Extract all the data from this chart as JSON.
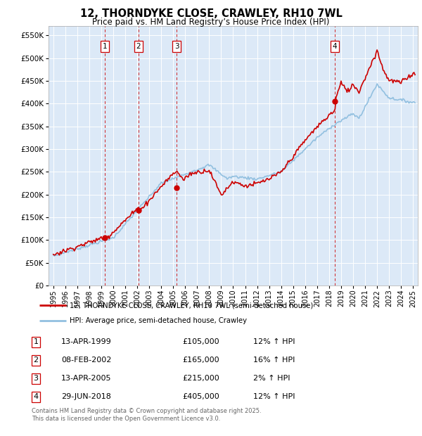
{
  "title": "12, THORNDYKE CLOSE, CRAWLEY, RH10 7WL",
  "subtitle": "Price paid vs. HM Land Registry’s House Price Index (HPI)",
  "legend_label_red": "12, THORNDYKE CLOSE, CRAWLEY, RH10 7WL (semi-detached house)",
  "legend_label_blue": "HPI: Average price, semi-detached house, Crawley",
  "footer": "Contains HM Land Registry data © Crown copyright and database right 2025.\nThis data is licensed under the Open Government Licence v3.0.",
  "transactions": [
    {
      "num": 1,
      "date": "13-APR-1999",
      "price": 105000,
      "pct": "12%",
      "dir": "↑",
      "x_year": 1999.28
    },
    {
      "num": 2,
      "date": "08-FEB-2002",
      "price": 165000,
      "pct": "16%",
      "dir": "↑",
      "x_year": 2002.11
    },
    {
      "num": 3,
      "date": "13-APR-2005",
      "price": 215000,
      "pct": "2%",
      "dir": "↑",
      "x_year": 2005.28
    },
    {
      "num": 4,
      "date": "29-JUN-2018",
      "price": 405000,
      "pct": "12%",
      "dir": "↑",
      "x_year": 2018.49
    }
  ],
  "transaction_prices": [
    105000,
    165000,
    215000,
    405000
  ],
  "hpi_color": "#92c0e0",
  "price_color": "#cc0000",
  "dashed_line_color": "#cc0000",
  "background_color": "#dce9f7",
  "ylim": [
    0,
    570000
  ],
  "yticks": [
    0,
    50000,
    100000,
    150000,
    200000,
    250000,
    300000,
    350000,
    400000,
    450000,
    500000,
    550000
  ],
  "xlim_start": 1994.6,
  "xlim_end": 2025.4
}
